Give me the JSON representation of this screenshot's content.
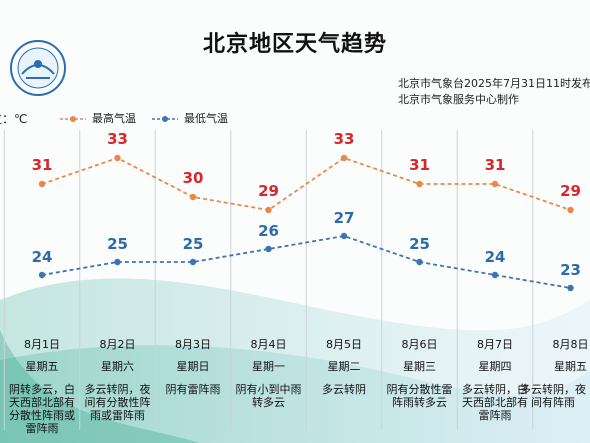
{
  "title": "北京地区天气趋势",
  "publisher": {
    "line1": "北京市气象台2025年7月31日11时发布",
    "line2": "北京市气象服务中心制作"
  },
  "unit_label": "单位：℃",
  "colors": {
    "high": "#e8894a",
    "low": "#3d74b5",
    "high_text": "#d9262b",
    "low_text": "#2e6aa8"
  },
  "logo": {
    "icon": "weather-service-logo"
  },
  "chart_data": {
    "type": "line",
    "categories": [
      "8月1日",
      "8月2日",
      "8月3日",
      "8月4日",
      "8月5日",
      "8月6日",
      "8月7日",
      "8月8日"
    ],
    "weekdays": [
      "星期五",
      "星期六",
      "星期日",
      "星期一",
      "星期二",
      "星期三",
      "星期四",
      "星期五"
    ],
    "conditions": [
      "阴转多云，白天西部北部有分散性阵雨或雷阵雨",
      "多云转阴，夜间有分散性阵雨或雷阵雨",
      "阴有雷阵雨",
      "阴有小到中雨转多云",
      "多云转阴",
      "阴有分散性雷阵雨转多云",
      "多云转阴，白天西部北部有雷阵雨",
      "多云转阴，夜间有阵雨"
    ],
    "series": [
      {
        "name": "最高气温",
        "values": [
          31,
          33,
          30,
          29,
          33,
          31,
          31,
          29
        ]
      },
      {
        "name": "最低气温",
        "values": [
          24,
          25,
          25,
          26,
          27,
          25,
          24,
          23
        ]
      }
    ],
    "ylim": [
      20,
      36
    ],
    "legend_position": "top"
  }
}
